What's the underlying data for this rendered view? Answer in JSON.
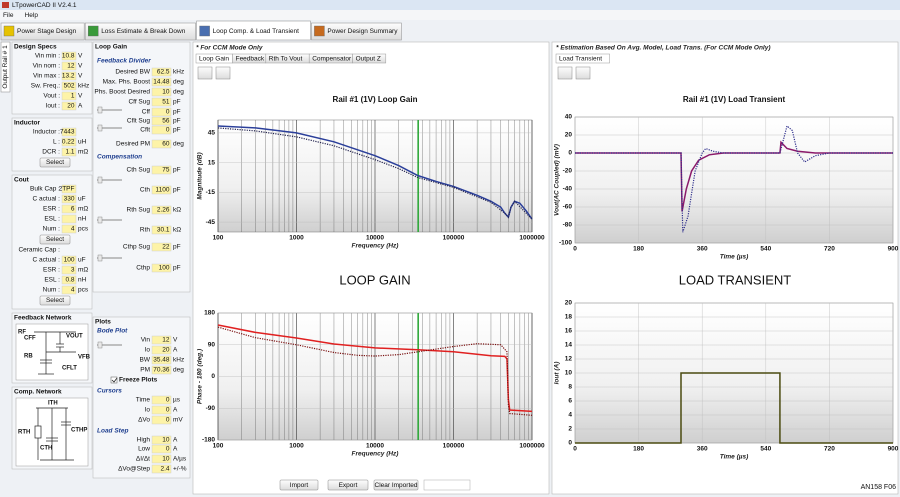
{
  "window": {
    "title": "LTpowerCAD II V2.4.1",
    "menu": [
      "File",
      "Help"
    ],
    "tabs": [
      "Power Stage Design",
      "Loss Estimate & Break Down",
      "Loop Comp. & Load Transient",
      "Power Design Summary"
    ],
    "side_tab": "Output Rail # 1"
  },
  "left_panel": {
    "sections": [
      {
        "title": "Design Specs",
        "items": [
          {
            "label": "Vin min :",
            "value": 10.8,
            "unit": "V"
          },
          {
            "label": "Vin nom :",
            "value": 12,
            "unit": "V"
          },
          {
            "label": "Vin max :",
            "value": 13.2,
            "unit": "V"
          },
          {
            "label": "Sw. Freq.:",
            "value": 502,
            "unit": "kHz"
          },
          {
            "label": "Vout :",
            "value": 1,
            "unit": "V"
          },
          {
            "label": "Iout :",
            "value": 20,
            "unit": "A"
          }
        ]
      },
      {
        "title": "Inductor",
        "items": [
          {
            "label": "Inductor :",
            "value": 7443
          },
          {
            "label": "L :",
            "value": 0.22,
            "unit": "uH"
          },
          {
            "label": "DCR :",
            "value": 1.1,
            "unit": "mΩ"
          },
          {
            "button": "Select"
          }
        ]
      },
      {
        "title": "Cout",
        "items": [
          {
            "label": "Bulk Cap :",
            "value": "2TPF"
          },
          {
            "label": "C actual :",
            "value": 330,
            "unit": "uF"
          },
          {
            "label": "ESR :",
            "value": 6,
            "unit": "mΩ"
          },
          {
            "label": "ESL :",
            "unit": "nH"
          },
          {
            "label": "Num :",
            "value": 4,
            "unit": "pcs"
          },
          {
            "button": "Select"
          },
          {
            "label": "Ceramic Cap :"
          },
          {
            "label": "C actual :",
            "value": 100,
            "unit": "uF"
          },
          {
            "label": "ESR :",
            "value": 3,
            "unit": "mΩ"
          },
          {
            "label": "ESL :",
            "value": 0.8,
            "unit": "nH"
          },
          {
            "label": "Num :",
            "value": 4,
            "unit": "pcs"
          },
          {
            "button": "Select"
          }
        ]
      },
      {
        "title": "Feedback Network",
        "labels": [
          "RF",
          "CFF",
          "VOUT",
          "VFB",
          "RB",
          "CFLT"
        ]
      },
      {
        "title": "Comp. Network",
        "labels": [
          "ITH",
          "RTH",
          "CTH",
          "CTHP"
        ]
      }
    ]
  },
  "mid_panel": {
    "items": [
      {
        "heading": "Loop Gain"
      },
      {
        "sub": "Feedback Divider"
      },
      {
        "label": "Desired BW",
        "value": 62.5,
        "unit": "kHz"
      },
      {
        "label": "Max. Phs. Boost",
        "value": 14.48,
        "unit": "deg"
      },
      {
        "label": "Phs. Boost Desired",
        "value": 10,
        "unit": "deg"
      },
      {
        "label": "Cff Sug",
        "value": 51,
        "unit": "pF"
      },
      {
        "label": "Cff",
        "value": 0,
        "unit": "pF"
      },
      {
        "label": "Cflt Sug",
        "value": 56,
        "unit": "pF"
      },
      {
        "label": "Cflt",
        "value": 0,
        "unit": "pF"
      },
      {
        "label": "Desired PM",
        "value": 60,
        "unit": "deg"
      },
      {
        "sub": "Compensation"
      },
      {
        "label": "Cth Sug",
        "value": 75,
        "unit": "pF"
      },
      {
        "label": "Cth",
        "value": 1100,
        "unit": "pF"
      },
      {
        "label": "Rth Sug",
        "value": 2.26,
        "unit": "kΩ"
      },
      {
        "label": "Rth",
        "value": 30.1,
        "unit": "kΩ"
      },
      {
        "label": "Cthp Sug",
        "value": 22,
        "unit": "pF"
      },
      {
        "label": "Cthp",
        "value": 100,
        "unit": "pF"
      },
      {
        "heading": "Plots"
      },
      {
        "sub": "Bode Plot"
      },
      {
        "label": "Vin",
        "value": 12,
        "unit": "V"
      },
      {
        "label": "Io",
        "value": 20,
        "unit": "A"
      },
      {
        "label": "BW",
        "value": 35.48,
        "unit": "kHz"
      },
      {
        "label": "PM",
        "value": 70.36,
        "unit": "deg"
      },
      {
        "check": "Freeze Plots"
      },
      {
        "sub": "Cursors"
      },
      {
        "label": "Time",
        "value": 0,
        "unit": "µs"
      },
      {
        "label": "Io",
        "value": 0,
        "unit": "A"
      },
      {
        "label": "ΔVo",
        "value": 0,
        "unit": "mV"
      },
      {
        "sub": "Load Step"
      },
      {
        "label": "High",
        "value": 10,
        "unit": "A"
      },
      {
        "label": "Low",
        "value": 0,
        "unit": "A"
      },
      {
        "label": "ΔI/Δt",
        "value": 10,
        "unit": "A/µs"
      },
      {
        "label": "ΔVo@Step",
        "value": 2.4,
        "unit": "+/-%"
      }
    ]
  },
  "loop_panel": {
    "note": "* For CCM Mode Only",
    "tabs": [
      "Loop Gain",
      "Feedback",
      "Rth To Vout",
      "Compensator",
      "Output Z"
    ],
    "heading": "LOOP GAIN",
    "buttons": [
      "Import",
      "Export",
      "Clear Imported"
    ]
  },
  "transient_panel": {
    "note": "* Estimation Based On Avg. Model, Load Trans. (For CCM Mode Only)",
    "tabs": [
      "Load Transient"
    ],
    "heading": "LOAD TRANSIENT"
  },
  "chart_data": [
    {
      "type": "line",
      "title": "Rail #1 (1V) Loop Gain",
      "xlabel": "Frequency (Hz)",
      "ylabel": "Magnitude (dB)",
      "xscale": "log",
      "xlim": [
        100,
        1000000
      ],
      "xticks": [
        100,
        1000,
        10000,
        100000,
        1000000
      ],
      "xminor": [
        200,
        300,
        400,
        500,
        600,
        700,
        800,
        900,
        2000,
        3000,
        4000,
        5000,
        6000,
        7000,
        8000,
        9000,
        20000,
        30000,
        40000,
        50000,
        60000,
        70000,
        80000,
        90000,
        200000,
        300000,
        400000,
        500000,
        600000,
        700000,
        800000,
        900000
      ],
      "ylim": [
        -55,
        58
      ],
      "yticks": [
        45,
        15,
        -15,
        -45
      ],
      "grid": true,
      "cursor_line": {
        "x": 35480,
        "color": "#2fa83a"
      },
      "series": [
        {
          "color": "#2b3f9a",
          "style": "solid",
          "x": [
            100,
            300,
            1000,
            3000,
            10000,
            20000,
            35000,
            60000,
            100000,
            200000,
            300000,
            400000,
            450000,
            500000,
            540000,
            600000,
            700000,
            850000,
            1000000
          ],
          "values": [
            52,
            50,
            45,
            36,
            22,
            12,
            2,
            -4,
            -9,
            -18,
            -24,
            -30,
            -36,
            -40,
            -30,
            -24,
            -26,
            -34,
            -42
          ]
        },
        {
          "color": "#23234f",
          "style": "dotted",
          "x": [
            100,
            300,
            1000,
            3000,
            10000,
            20000,
            35000,
            100000,
            300000,
            450000,
            500000,
            540000,
            600000,
            1000000
          ],
          "values": [
            50,
            47,
            41,
            32,
            18,
            9,
            0,
            -10,
            -25,
            -36,
            -40,
            -30,
            -24,
            -42
          ]
        }
      ]
    },
    {
      "type": "line",
      "xlabel": "Frequency (Hz)",
      "ylabel": "Phase - 180 (deg.)",
      "xscale": "log",
      "xlim": [
        100,
        1000000
      ],
      "xticks": [
        100,
        1000,
        10000,
        100000,
        1000000
      ],
      "xminor": [
        200,
        300,
        400,
        500,
        600,
        700,
        800,
        900,
        2000,
        3000,
        4000,
        5000,
        6000,
        7000,
        8000,
        9000,
        20000,
        30000,
        40000,
        50000,
        60000,
        70000,
        80000,
        90000,
        200000,
        300000,
        400000,
        500000,
        600000,
        700000,
        800000,
        900000
      ],
      "ylim": [
        -180,
        180
      ],
      "yticks": [
        180,
        90,
        0,
        -90,
        -180
      ],
      "grid": true,
      "cursor_line": {
        "x": 35480,
        "color": "#2fa83a"
      },
      "series": [
        {
          "color": "#e02020",
          "style": "solid",
          "x": [
            100,
            300,
            1000,
            3000,
            10000,
            35000,
            100000,
            300000,
            450000,
            480000,
            500000,
            520000,
            1000000
          ],
          "values": [
            146,
            125,
            109,
            92,
            81,
            76,
            70,
            59,
            57,
            50,
            -65,
            -95,
            -99
          ]
        },
        {
          "color": "#7a1010",
          "style": "dotted",
          "x": [
            100,
            300,
            1000,
            3000,
            6000,
            10000,
            20000,
            50000,
            100000,
            200000,
            400000,
            480000,
            500000,
            520000,
            1000000
          ],
          "values": [
            140,
            110,
            90,
            68,
            60,
            58,
            62,
            75,
            85,
            93,
            90,
            70,
            -80,
            -105,
            -110
          ]
        }
      ]
    },
    {
      "type": "line",
      "title": "Rail #1 (1V) Load Transient",
      "xlabel": "Time (µs)",
      "ylabel": "Vout(AC Coupled) (mV)",
      "xlim": [
        0,
        900
      ],
      "xticks": [
        0,
        180,
        360,
        540,
        720,
        900
      ],
      "ylim": [
        -100,
        40
      ],
      "yticks": [
        40,
        20,
        0,
        -20,
        -40,
        -60,
        -80,
        -100
      ],
      "grid": true,
      "series": [
        {
          "color": "#8b1a6b",
          "style": "solid",
          "x": [
            0,
            300,
            303,
            315,
            330,
            350,
            380,
            420,
            580,
            583,
            600,
            630,
            680,
            900
          ],
          "values": [
            0,
            0,
            -65,
            -40,
            -20,
            -8,
            -2,
            0,
            0,
            12,
            5,
            2,
            0,
            0
          ]
        },
        {
          "color": "#2e2e8c",
          "style": "dotted",
          "x": [
            0,
            300,
            305,
            320,
            340,
            360,
            370,
            390,
            420,
            580,
            590,
            600,
            615,
            630,
            650,
            680,
            720,
            900
          ],
          "values": [
            0,
            0,
            -88,
            -70,
            -20,
            0,
            5,
            2,
            0,
            0,
            15,
            30,
            25,
            0,
            -10,
            -3,
            0,
            0
          ]
        }
      ]
    },
    {
      "type": "line",
      "xlabel": "Time (µs)",
      "ylabel": "Iout (A)",
      "xlim": [
        0,
        900
      ],
      "xticks": [
        0,
        180,
        360,
        540,
        720,
        900
      ],
      "ylim": [
        0,
        20
      ],
      "yticks": [
        20,
        18,
        16,
        14,
        12,
        10,
        8,
        6,
        4,
        2,
        0
      ],
      "grid": true,
      "series": [
        {
          "color": "#4b4b10",
          "style": "solid",
          "x": [
            0,
            300,
            300,
            580,
            580,
            900
          ],
          "values": [
            0,
            0,
            10,
            10,
            0,
            0
          ]
        }
      ]
    }
  ],
  "footer": "AN158 F06"
}
